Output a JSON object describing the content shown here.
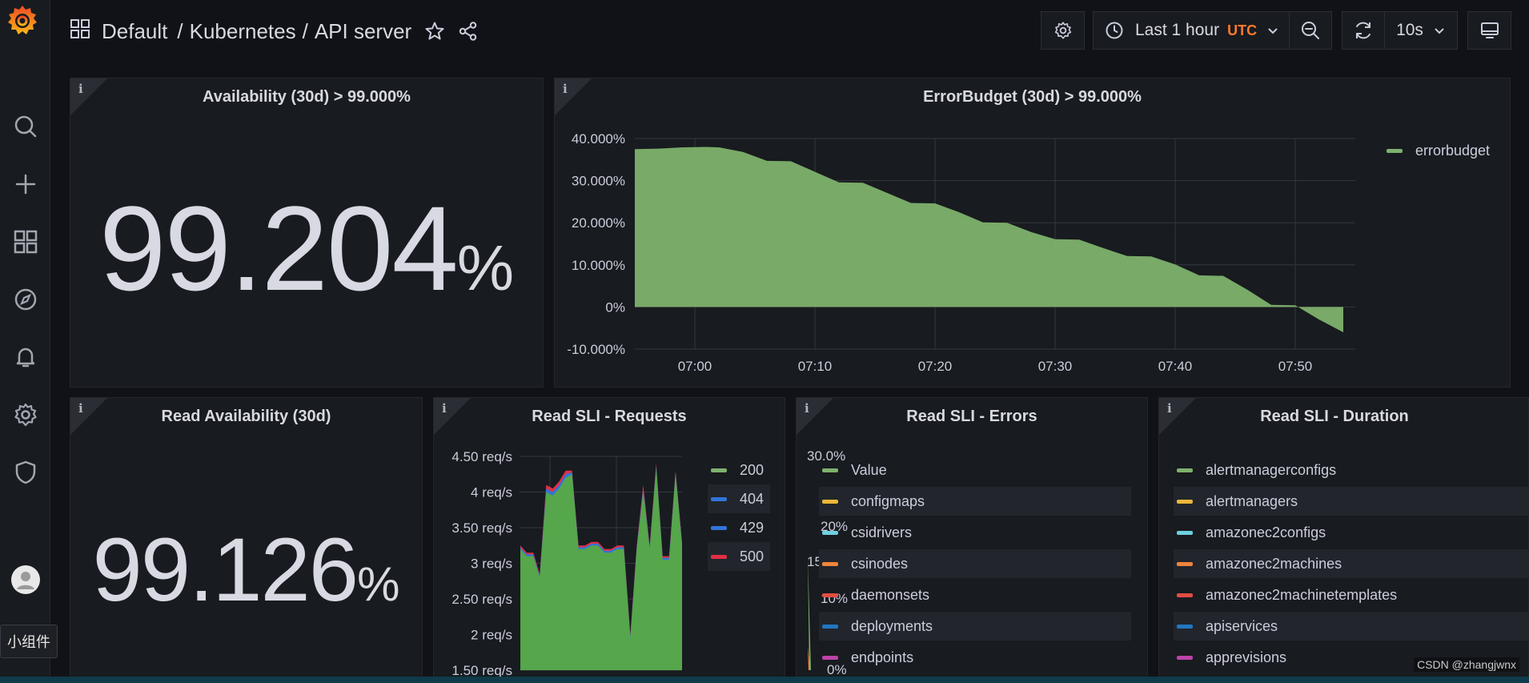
{
  "breadcrumb": {
    "folder": "Default",
    "separator1": "/",
    "section": "Kubernetes",
    "separator2": "/",
    "dashboard": "API server"
  },
  "toolbar": {
    "time_range": "Last 1 hour",
    "timezone": "UTC",
    "refresh_interval": "10s"
  },
  "panels": {
    "availability": {
      "title": "Availability (30d) > 99.000%",
      "value": "99.204",
      "unit": "%"
    },
    "errorbudget": {
      "title": "ErrorBudget (30d) > 99.000%",
      "legend": [
        "errorbudget"
      ]
    },
    "read_availability": {
      "title": "Read Availability (30d)",
      "value": "99.126",
      "unit": "%"
    },
    "read_requests": {
      "title": "Read SLI - Requests",
      "legend": [
        "200",
        "404",
        "429",
        "500"
      ]
    },
    "read_errors": {
      "title": "Read SLI - Errors",
      "ytick_top": "30.0%",
      "ytick_mid": "20%",
      "ytick_bottom": "0%",
      "partial_tick_15": "15",
      "partial_tick_10": "10%",
      "legend": [
        "Value",
        "configmaps",
        "csidrivers",
        "csinodes",
        "daemonsets",
        "deployments",
        "endpoints"
      ]
    },
    "read_duration": {
      "title": "Read SLI - Duration",
      "legend": [
        "alertmanagerconfigs",
        "alertmanagers",
        "amazonec2configs",
        "amazonec2machines",
        "amazonec2machinetemplates",
        "apiservices",
        "apprevisions"
      ]
    }
  },
  "tooltip": "小组件",
  "watermark": "CSDN @zhangjwnx",
  "colors": {
    "green": "#7eb26d",
    "yellow": "#eab839",
    "cyan": "#6ed0e0",
    "orange": "#ef843c",
    "red": "#e24d42",
    "blue": "#1f78c1",
    "magenta": "#ba43a9",
    "blue2": "#3274d9",
    "red2": "#e02f44"
  },
  "chart_data": [
    {
      "type": "area",
      "title": "ErrorBudget (30d) > 99.000%",
      "x": [
        "06:55",
        "06:57",
        "06:59",
        "07:01",
        "07:02",
        "07:04",
        "07:06",
        "07:08",
        "07:10",
        "07:12",
        "07:14",
        "07:16",
        "07:18",
        "07:20",
        "07:22",
        "07:24",
        "07:26",
        "07:28",
        "07:30",
        "07:32",
        "07:34",
        "07:36",
        "07:38",
        "07:40",
        "07:42",
        "07:44",
        "07:46",
        "07:48",
        "07:50",
        "07:52",
        "07:54"
      ],
      "series": [
        {
          "name": "errorbudget",
          "values": [
            37.5,
            37.6,
            37.9,
            38.0,
            37.9,
            36.8,
            34.7,
            34.6,
            32.1,
            29.6,
            29.5,
            27.1,
            24.7,
            24.6,
            22.5,
            20.1,
            20.0,
            17.8,
            16.1,
            16.0,
            14.0,
            12.1,
            12.0,
            10.1,
            7.5,
            7.4,
            4.1,
            0.5,
            0.4,
            -3.0,
            -6.0
          ]
        }
      ],
      "xticks": [
        "07:00",
        "07:10",
        "07:20",
        "07:30",
        "07:40",
        "07:50"
      ],
      "yticks": [
        "40.000%",
        "30.000%",
        "20.000%",
        "10.000%",
        "0%",
        "-10.000%"
      ],
      "ylim": [
        -10,
        40
      ]
    },
    {
      "type": "area",
      "title": "Read SLI - Requests",
      "yticks": [
        "4.50 req/s",
        "4 req/s",
        "3.50 req/s",
        "3 req/s",
        "2.50 req/s",
        "2 req/s",
        "1.50 req/s"
      ],
      "ylim": [
        1.5,
        4.5
      ],
      "series": [
        {
          "name": "200",
          "values": [
            3.2,
            3.1,
            3.1,
            2.8,
            4.0,
            3.95,
            4.05,
            4.2,
            4.25,
            3.2,
            3.2,
            3.25,
            3.25,
            3.15,
            3.15,
            3.2,
            3.2,
            1.95,
            3.2,
            4.0,
            3.2,
            4.35,
            3.05,
            3.05,
            4.25,
            3.25
          ]
        },
        {
          "name": "500",
          "values": [
            3.25,
            3.15,
            3.15,
            2.85,
            4.1,
            4.05,
            4.15,
            4.3,
            4.3,
            3.25,
            3.25,
            3.3,
            3.3,
            3.2,
            3.2,
            3.25,
            3.25,
            2.0,
            3.25,
            4.1,
            3.25,
            4.4,
            3.1,
            3.1,
            4.3,
            3.3
          ]
        }
      ]
    }
  ]
}
